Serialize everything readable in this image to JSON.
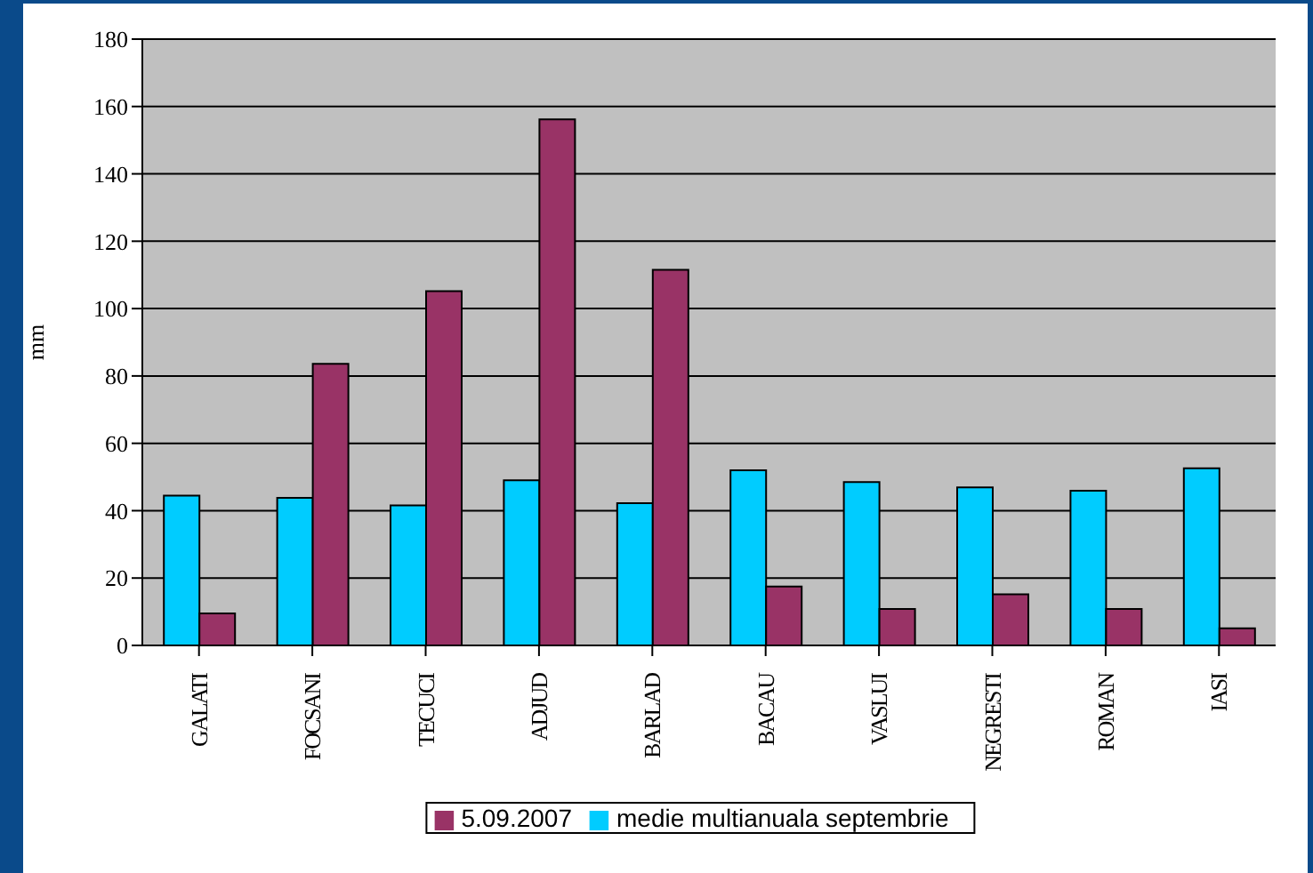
{
  "chart_data": {
    "type": "bar",
    "ylabel": "mm",
    "categories": [
      "GALATI",
      "FOCSANI",
      "TECUCI",
      "ADJUD",
      "BARLAD",
      "BACAU",
      "VASLUI",
      "NEGRESTI",
      "ROMAN",
      "IASI"
    ],
    "series": [
      {
        "name": "medie multianuala septembrie",
        "color": "#00ccff",
        "values": [
          44.5,
          43.8,
          41.6,
          49,
          42.2,
          52,
          48.5,
          46.9,
          45.9,
          52.6
        ]
      },
      {
        "name": "5.09.2007",
        "color": "#993366",
        "values": [
          9.5,
          83.6,
          105.2,
          156.2,
          111.5,
          17.5,
          10.8,
          15.2,
          10.8,
          5.1
        ]
      }
    ],
    "ylim": [
      0,
      180
    ],
    "yticks": [
      0,
      20,
      40,
      60,
      80,
      100,
      120,
      140,
      160,
      180
    ],
    "grid": "y",
    "legend": "bottom"
  }
}
